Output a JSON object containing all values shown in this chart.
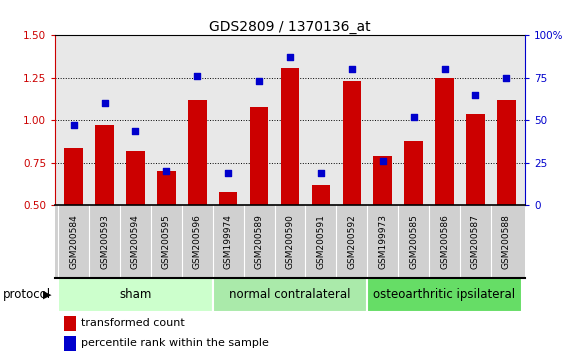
{
  "title": "GDS2809 / 1370136_at",
  "samples": [
    "GSM200584",
    "GSM200593",
    "GSM200594",
    "GSM200595",
    "GSM200596",
    "GSM199974",
    "GSM200589",
    "GSM200590",
    "GSM200591",
    "GSM200592",
    "GSM199973",
    "GSM200585",
    "GSM200586",
    "GSM200587",
    "GSM200588"
  ],
  "transformed_count": [
    0.84,
    0.97,
    0.82,
    0.7,
    1.12,
    0.58,
    1.08,
    1.31,
    0.62,
    1.23,
    0.79,
    0.88,
    1.25,
    1.04,
    1.12
  ],
  "percentile_rank": [
    47,
    60,
    44,
    20,
    76,
    19,
    73,
    87,
    19,
    80,
    26,
    52,
    80,
    65,
    75
  ],
  "groups": [
    {
      "label": "sham",
      "start": 0,
      "end": 4,
      "color": "#ccffcc"
    },
    {
      "label": "normal contralateral",
      "start": 5,
      "end": 9,
      "color": "#aaeaaa"
    },
    {
      "label": "osteoarthritic ipsilateral",
      "start": 10,
      "end": 14,
      "color": "#66dd66"
    }
  ],
  "bar_color": "#cc0000",
  "dot_color": "#0000cc",
  "ylim_left": [
    0.5,
    1.5
  ],
  "ylim_right": [
    0,
    100
  ],
  "yticks_left": [
    0.5,
    0.75,
    1.0,
    1.25,
    1.5
  ],
  "yticks_right": [
    0,
    25,
    50,
    75,
    100
  ],
  "chart_bg": "#e8e8e8",
  "xlabel_bg": "#d0d0d0",
  "title_fontsize": 10,
  "tick_fontsize": 6.5,
  "legend_fontsize": 8,
  "group_label_fontsize": 8.5,
  "protocol_fontsize": 8.5
}
